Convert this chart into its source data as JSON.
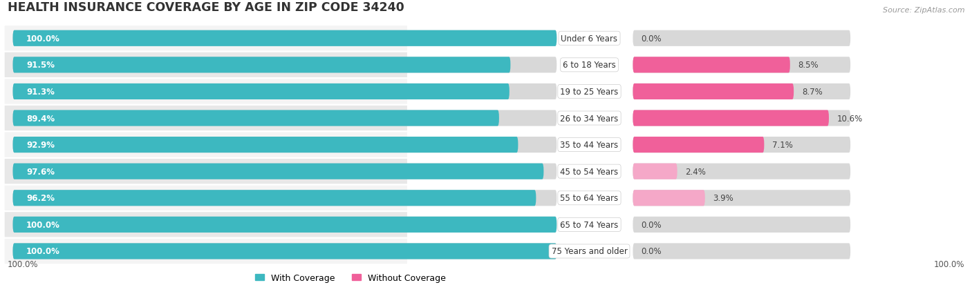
{
  "title": "HEALTH INSURANCE COVERAGE BY AGE IN ZIP CODE 34240",
  "source": "Source: ZipAtlas.com",
  "categories": [
    "Under 6 Years",
    "6 to 18 Years",
    "19 to 25 Years",
    "26 to 34 Years",
    "35 to 44 Years",
    "45 to 54 Years",
    "55 to 64 Years",
    "65 to 74 Years",
    "75 Years and older"
  ],
  "with_coverage": [
    100.0,
    91.5,
    91.3,
    89.4,
    92.9,
    97.6,
    96.2,
    100.0,
    100.0
  ],
  "without_coverage": [
    0.0,
    8.5,
    8.7,
    10.6,
    7.1,
    2.4,
    3.9,
    0.0,
    0.0
  ],
  "color_with": "#3db8c0",
  "color_without_high": "#f0609a",
  "color_without_low": "#f5a8c8",
  "color_without_zero": "#f0c8d8",
  "bg_light": "#f4f4f4",
  "bg_dark": "#e8e8e8",
  "bar_track_color": "#d8d8d8",
  "title_fontsize": 12.5,
  "label_fontsize": 8.5,
  "pct_fontsize": 8.5,
  "legend_fontsize": 9,
  "source_fontsize": 8
}
